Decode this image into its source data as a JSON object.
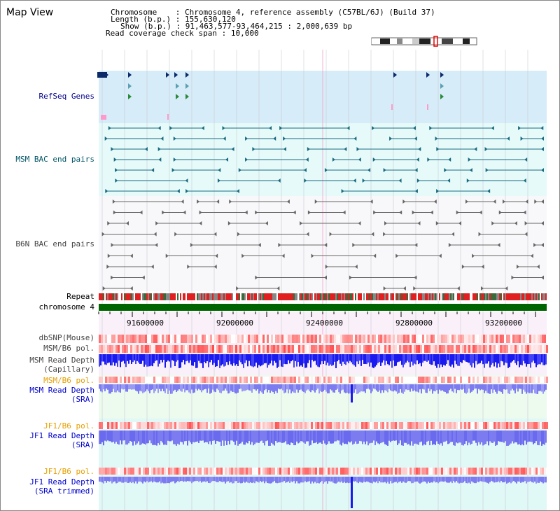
{
  "title": "Map View",
  "info": {
    "chromosome_label": "Chromosome",
    "chromosome_value": "Chromosome 4, reference assembly (C57BL/6J) (Build 37)",
    "length_label": "Length (b.p.)",
    "length_value": "155,630,120",
    "show_label": "Show (b.p.)",
    "show_value": "91,463,577-93,464,215 : 2,000,639 bp",
    "coverage_label": "Read coverage check span",
    "coverage_value": "10,000"
  },
  "tracks": {
    "refseq": "RefSeq Genes",
    "msm_bac": "MSM BAC end pairs",
    "b6n_bac": "B6N BAC end pairs",
    "repeat": "Repeat",
    "chromosome": "chromosome 4",
    "dbsnp": "dbSNP(Mouse)",
    "msm_b6_pol": "MSM/B6 pol.",
    "msm_depth_cap_1": "MSM Read Depth",
    "msm_depth_cap_2": "(Capillary)",
    "msm_b6_pol_2": "MSM/B6 pol.",
    "msm_depth_sra_1": "MSM Read Depth",
    "msm_depth_sra_2": "(SRA)",
    "jf1_b6_pol": "JF1/B6 pol.",
    "jf1_depth_sra_1": "JF1 Read Depth",
    "jf1_depth_sra_2": "(SRA)",
    "jf1_b6_pol_2": "JF1/B6 pol.",
    "jf1_depth_trim_1": "JF1 Read Depth",
    "jf1_depth_trim_2": "(SRA trimmed)"
  },
  "axis": {
    "ticks": [
      "91600000",
      "92000000",
      "92400000",
      "92800000",
      "93200000"
    ]
  },
  "colors": {
    "refseq_bg": "#d6ecf8",
    "msm_bg": "#e6fafa",
    "b6n_bg": "#f8f8fa",
    "chromosome_bar": "#006400",
    "msm_feature": "#1a6b80",
    "b6n_feature": "#666666",
    "depth_blue": "#1a1aee",
    "depth_light": "#7c7cf0",
    "pol_red": "#ff5555",
    "label_orange": "#e8a000"
  }
}
